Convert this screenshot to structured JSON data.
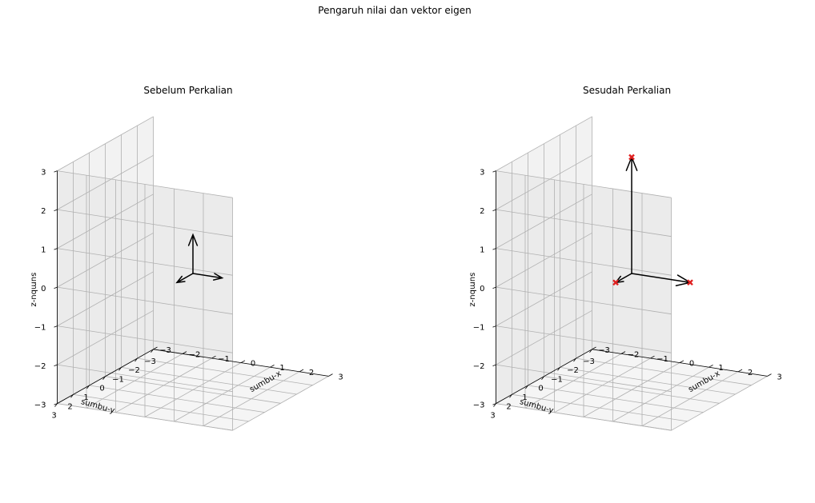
{
  "figure": {
    "suptitle": "Pengaruh nilai dan vektor eigen"
  },
  "chart_data": [
    {
      "type": "3d-quiver",
      "title": "Sebelum Perkalian",
      "xlabel": "sumbu-x",
      "ylabel": "sumbu-y",
      "zlabel": "sumbu-z",
      "xlim": [
        -3,
        3
      ],
      "ylim": [
        -3,
        3
      ],
      "zlim": [
        -3,
        3
      ],
      "ticks": [
        "−3",
        "−2",
        "−1",
        "0",
        "1",
        "2",
        "3"
      ],
      "tick_values": [
        -3,
        -2,
        -1,
        0,
        1,
        2,
        3
      ],
      "grid": true,
      "vectors": [
        {
          "origin": [
            0,
            0,
            0
          ],
          "end": [
            1,
            0,
            0
          ],
          "color": "#000000"
        },
        {
          "origin": [
            0,
            0,
            0
          ],
          "end": [
            0,
            1,
            0
          ],
          "color": "#000000"
        },
        {
          "origin": [
            0,
            0,
            0
          ],
          "end": [
            0,
            0,
            1
          ],
          "color": "#000000"
        }
      ],
      "points": []
    },
    {
      "type": "3d-quiver",
      "title": "Sesudah Perkalian",
      "xlabel": "sumbu-x",
      "ylabel": "sumbu-y",
      "zlabel": "sumbu-z",
      "xlim": [
        -3,
        3
      ],
      "ylim": [
        -3,
        3
      ],
      "zlim": [
        -3,
        3
      ],
      "ticks": [
        "−3",
        "−2",
        "−1",
        "0",
        "1",
        "2",
        "3"
      ],
      "tick_values": [
        -3,
        -2,
        -1,
        0,
        1,
        2,
        3
      ],
      "grid": true,
      "vectors": [
        {
          "origin": [
            0,
            0,
            0
          ],
          "end": [
            2,
            0,
            0
          ],
          "color": "#000000"
        },
        {
          "origin": [
            0,
            0,
            0
          ],
          "end": [
            0,
            1,
            0
          ],
          "color": "#000000"
        },
        {
          "origin": [
            0,
            0,
            0
          ],
          "end": [
            0,
            0,
            3
          ],
          "color": "#000000"
        }
      ],
      "points": [
        {
          "coord": [
            2,
            0,
            0
          ],
          "marker": "X",
          "color": "#e02020"
        },
        {
          "coord": [
            0,
            1,
            0
          ],
          "marker": "X",
          "color": "#e02020"
        },
        {
          "coord": [
            0,
            0,
            3
          ],
          "marker": "X",
          "color": "#e02020"
        }
      ]
    }
  ]
}
